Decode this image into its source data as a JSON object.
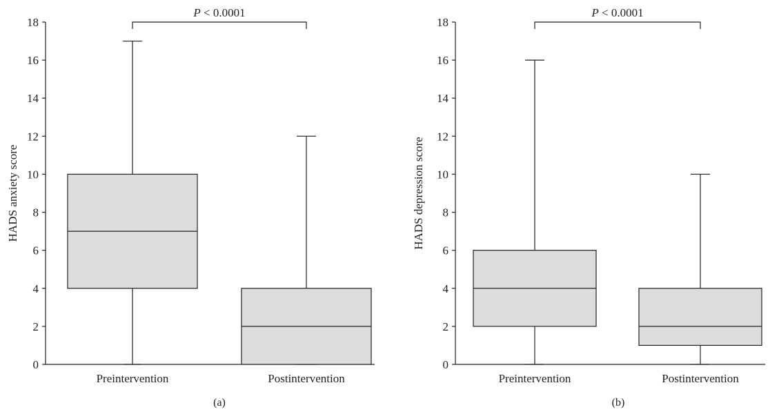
{
  "colors": {
    "box_fill": "#dcdddf",
    "ink": "#231f20"
  },
  "chart_data": [
    {
      "type": "boxplot",
      "panel_label": "(a)",
      "ylabel": "HADS anxiety score",
      "ylim": [
        0,
        18
      ],
      "yticks": [
        0,
        2,
        4,
        6,
        8,
        10,
        12,
        14,
        16,
        18
      ],
      "grid": false,
      "categories": [
        "Preintervention",
        "Postintervention"
      ],
      "boxes": [
        {
          "category": "Preintervention",
          "min": 0,
          "q1": 4,
          "median": 7,
          "q3": 10,
          "max": 17
        },
        {
          "category": "Postintervention",
          "min": 0,
          "q1": 0,
          "median": 2,
          "q3": 4,
          "max": 12
        }
      ],
      "annotation": {
        "p_symbol": "P",
        "p_text": " < 0.0001",
        "between": [
          "Preintervention",
          "Postintervention"
        ]
      }
    },
    {
      "type": "boxplot",
      "panel_label": "(b)",
      "ylabel": "HADS depression score",
      "ylim": [
        0,
        18
      ],
      "yticks": [
        0,
        2,
        4,
        6,
        8,
        10,
        12,
        14,
        16,
        18
      ],
      "grid": false,
      "categories": [
        "Preintervention",
        "Postintervention"
      ],
      "boxes": [
        {
          "category": "Preintervention",
          "min": 0,
          "q1": 2,
          "median": 4,
          "q3": 6,
          "max": 16
        },
        {
          "category": "Postintervention",
          "min": 0,
          "q1": 1,
          "median": 2,
          "q3": 4,
          "max": 10
        }
      ],
      "annotation": {
        "p_symbol": "P",
        "p_text": " < 0.0001",
        "between": [
          "Preintervention",
          "Postintervention"
        ]
      }
    }
  ]
}
